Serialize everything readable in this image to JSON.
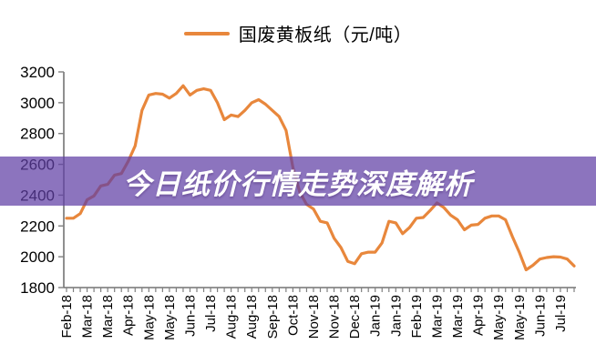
{
  "banner": {
    "title": "今日纸价行情走势深度解析"
  },
  "legend": {
    "label": "国废黄板纸（元/吨）"
  },
  "colors": {
    "line": "#e8873c",
    "axis": "#737373",
    "tick": "#808080",
    "label": "#000000",
    "banner_overlay": "rgba(95,62,165,0.72)",
    "banner_text": "#ffffff"
  },
  "chart_data": {
    "type": "line",
    "title": "",
    "xlabel": "",
    "ylabel": "",
    "unit": "元/吨",
    "frequency": "weekly",
    "ylim": [
      1800,
      3200
    ],
    "y_ticks": [
      1800,
      2000,
      2200,
      2400,
      2600,
      2800,
      3000,
      3200
    ],
    "grid": false,
    "legend_position": "top-center",
    "label_every_n_points": 3,
    "x_tick_labels": [
      "Feb-18",
      "Mar-18",
      "Mar-18",
      "Apr-18",
      "May-18",
      "May-18",
      "Jun-18",
      "Jul-18",
      "Aug-18",
      "Aug-18",
      "Sep-18",
      "Oct-18",
      "Nov-18",
      "Nov-18",
      "Dec-18",
      "Jan-19",
      "Jan-19",
      "Feb-19",
      "Mar-19",
      "Mar-19",
      "Apr-19",
      "May-19",
      "May-19",
      "Jun-19",
      "Jul-19"
    ],
    "series": [
      {
        "name": "国废黄板纸（元/吨）",
        "values": [
          2250,
          2250,
          2280,
          2370,
          2395,
          2460,
          2470,
          2530,
          2540,
          2620,
          2720,
          2950,
          3050,
          3060,
          3055,
          3030,
          3060,
          3110,
          3050,
          3080,
          3090,
          3080,
          3000,
          2890,
          2920,
          2910,
          2950,
          3000,
          3020,
          2990,
          2950,
          2910,
          2820,
          2580,
          2420,
          2340,
          2310,
          2230,
          2220,
          2120,
          2060,
          1970,
          1955,
          2020,
          2030,
          2030,
          2090,
          2230,
          2220,
          2150,
          2190,
          2250,
          2255,
          2300,
          2350,
          2320,
          2270,
          2240,
          2175,
          2205,
          2210,
          2250,
          2265,
          2265,
          2240,
          2130,
          2030,
          1915,
          1945,
          1985,
          1995,
          2000,
          1998,
          1985,
          1940
        ]
      }
    ]
  }
}
